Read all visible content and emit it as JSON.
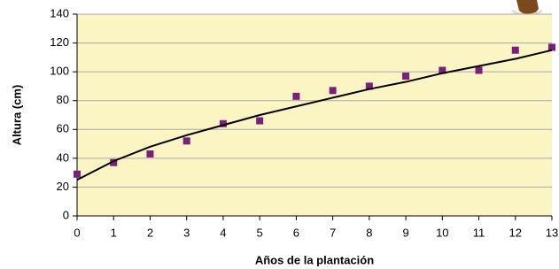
{
  "chart_data": {
    "type": "scatter",
    "x_label": "Años de la plantación",
    "y_label": "Altura (cm)",
    "x": [
      0,
      1,
      2,
      3,
      4,
      5,
      6,
      7,
      8,
      9,
      10,
      11,
      12,
      13
    ],
    "series": [
      {
        "color": "#7b1f7e",
        "style": "markers",
        "values": [
          29,
          37,
          43,
          52,
          64,
          66,
          83,
          87,
          90,
          97,
          101,
          101,
          115,
          117
        ]
      },
      {
        "color": "#000000",
        "style": "line",
        "values": [
          25,
          38,
          48,
          56,
          63,
          70,
          76,
          82,
          88,
          93,
          99,
          104,
          109,
          115
        ]
      }
    ],
    "xlim": [
      0,
      13
    ],
    "xticks": [
      0,
      1,
      2,
      3,
      4,
      5,
      6,
      7,
      8,
      9,
      10,
      11,
      12,
      13
    ],
    "ylim": [
      0,
      140
    ],
    "yticks": [
      0,
      20,
      40,
      60,
      80,
      100,
      120,
      140
    ],
    "grid": true,
    "plot_background": "#fbf5c3"
  }
}
